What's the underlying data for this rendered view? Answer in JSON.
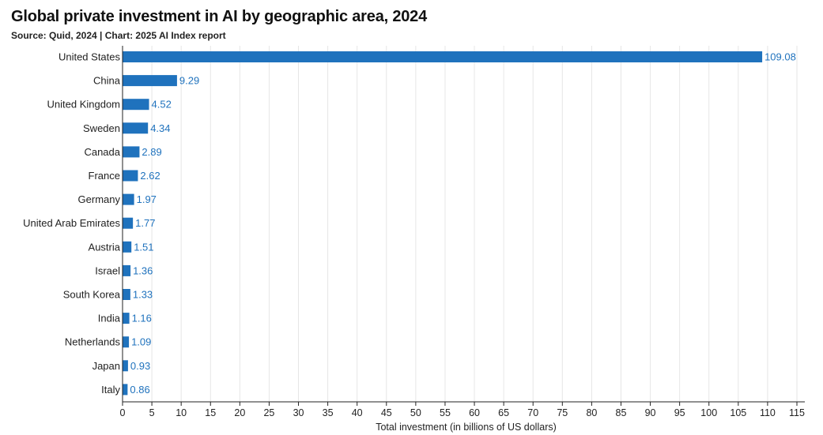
{
  "title": "Global private investment in AI by geographic area, 2024",
  "subtitle": "Source: Quid, 2024 | Chart: 2025 AI Index report",
  "colors": {
    "bar": "#1f72bd",
    "value_label": "#1f72bd",
    "axis": "#555555",
    "grid": "#e6e6e6"
  },
  "chart_data": {
    "type": "bar",
    "orientation": "horizontal",
    "title": "Global private investment in AI by geographic area, 2024",
    "subtitle": "Source: Quid, 2024 | Chart: 2025 AI Index report",
    "xlabel": "Total investment (in billions of US dollars)",
    "ylabel": "",
    "xlim": [
      0,
      115
    ],
    "x_ticks": [
      0,
      5,
      10,
      15,
      20,
      25,
      30,
      35,
      40,
      45,
      50,
      55,
      60,
      65,
      70,
      75,
      80,
      85,
      90,
      95,
      100,
      105,
      110,
      115
    ],
    "grid": true,
    "categories": [
      "United States",
      "China",
      "United Kingdom",
      "Sweden",
      "Canada",
      "France",
      "Germany",
      "United Arab Emirates",
      "Austria",
      "Israel",
      "South Korea",
      "India",
      "Netherlands",
      "Japan",
      "Italy"
    ],
    "values": [
      109.08,
      9.29,
      4.52,
      4.34,
      2.89,
      2.62,
      1.97,
      1.77,
      1.51,
      1.36,
      1.33,
      1.16,
      1.09,
      0.93,
      0.86
    ],
    "value_labels": [
      "109.08",
      "9.29",
      "4.52",
      "4.34",
      "2.89",
      "2.62",
      "1.97",
      "1.77",
      "1.51",
      "1.36",
      "1.33",
      "1.16",
      "1.09",
      "0.93",
      "0.86"
    ]
  }
}
